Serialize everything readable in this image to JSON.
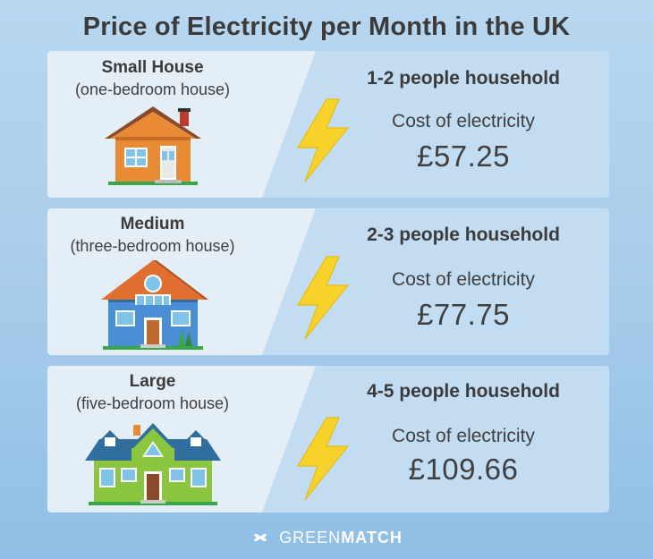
{
  "title": "Price of Electricity per Month in the UK",
  "rows": [
    {
      "house_name": "Small House",
      "house_sub": "(one-bedroom house)",
      "household": "1-2 people household",
      "cost_label": "Cost of electricity",
      "cost_value": "£57.25"
    },
    {
      "house_name": "Medium",
      "house_sub": "(three-bedroom house)",
      "household": "2-3 people household",
      "cost_label": "Cost of electricity",
      "cost_value": "£77.75"
    },
    {
      "house_name": "Large",
      "house_sub": "(five-bedroom house)",
      "household": "4-5 people household",
      "cost_label": "Cost of electricity",
      "cost_value": "£109.66"
    }
  ],
  "brand": {
    "part1": "GREEN",
    "part2": "MATCH"
  },
  "colors": {
    "bolt": "#f7d22a",
    "small_house_wall": "#e98a35",
    "medium_house_wall": "#4a8fd6",
    "large_house_wall": "#8cc63f",
    "roof_dark": "#2f6e9e"
  },
  "icons": [
    "small-house-icon",
    "medium-house-icon",
    "large-house-icon",
    "lightning-bolt-icon",
    "greenmatch-logo-icon"
  ]
}
